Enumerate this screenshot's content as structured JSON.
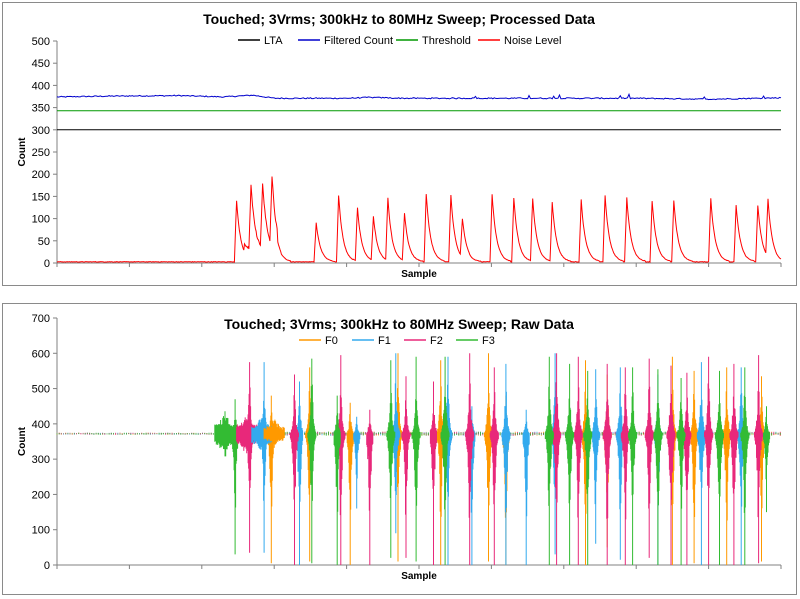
{
  "chart_data": [
    {
      "type": "line",
      "title": "Touched; 3Vrms; 300kHz to 80MHz Sweep; Processed Data",
      "xlabel": "Sample",
      "ylabel": "Count",
      "ylim": [
        0,
        500
      ],
      "yticks": [
        "0",
        "50",
        "100",
        "150",
        "200",
        "250",
        "300",
        "350",
        "400",
        "450",
        "500"
      ],
      "xlim": [
        0,
        1000
      ],
      "legend_position": "top",
      "series": [
        {
          "name": "LTA",
          "color": "#000000",
          "points": [
            [
              0,
              300
            ],
            [
              1000,
              300
            ]
          ]
        },
        {
          "name": "Filtered Count",
          "color": "#0000cc",
          "points": [
            [
              0,
              374
            ],
            [
              80,
              376
            ],
            [
              170,
              377
            ],
            [
              230,
              374
            ],
            [
              270,
              378
            ],
            [
              300,
              371
            ],
            [
              400,
              371
            ],
            [
              430,
              373
            ],
            [
              480,
              371
            ],
            [
              600,
              371
            ],
            [
              700,
              371
            ],
            [
              800,
              371
            ],
            [
              900,
              369
            ],
            [
              1000,
              372
            ]
          ]
        },
        {
          "name": "Threshold",
          "color": "#009900",
          "points": [
            [
              0,
              343
            ],
            [
              1000,
              343
            ]
          ]
        },
        {
          "name": "Noise Level",
          "color": "#ff0000",
          "baseline": 2,
          "peaks": [
            [
              248,
              138
            ],
            [
              268,
              147
            ],
            [
              284,
              146
            ],
            [
              297,
              155
            ],
            [
              358,
              88
            ],
            [
              389,
              150
            ],
            [
              415,
              122
            ],
            [
              437,
              100
            ],
            [
              457,
              140
            ],
            [
              480,
              107
            ],
            [
              510,
              153
            ],
            [
              544,
              150
            ],
            [
              560,
              87
            ],
            [
              601,
              152
            ],
            [
              631,
              144
            ],
            [
              657,
              143
            ],
            [
              684,
              135
            ],
            [
              724,
              140
            ],
            [
              757,
              150
            ],
            [
              787,
              145
            ],
            [
              822,
              137
            ],
            [
              852,
              138
            ],
            [
              903,
              143
            ],
            [
              938,
              128
            ],
            [
              968,
              127
            ],
            [
              982,
              130
            ]
          ]
        }
      ]
    },
    {
      "type": "line",
      "title": "Touched; 3Vrms; 300kHz to 80MHz Sweep; Raw Data",
      "xlabel": "Sample",
      "ylabel": "Count",
      "ylim": [
        0,
        700
      ],
      "yticks": [
        "0",
        "100",
        "200",
        "300",
        "400",
        "500",
        "600",
        "700"
      ],
      "xlim": [
        0,
        1000
      ],
      "legend_position": "top",
      "baseline": 370,
      "series": [
        {
          "name": "F0",
          "color": "#ff9900",
          "peaks": [
            [
              296,
              480,
              5
            ],
            [
              349,
              560,
              10
            ],
            [
              405,
              460,
              0
            ],
            [
              471,
              600,
              10
            ],
            [
              530,
              580,
              0
            ],
            [
              596,
              600,
              10
            ],
            [
              620,
              480,
              0
            ],
            [
              730,
              580,
              0
            ],
            [
              760,
              540,
              50
            ],
            [
              850,
              590,
              0
            ],
            [
              880,
              550,
              5
            ],
            [
              925,
              560,
              0
            ],
            [
              973,
              535,
              10
            ]
          ]
        },
        {
          "name": "F1",
          "color": "#33aaee",
          "peaks": [
            [
              286,
              575,
              35
            ],
            [
              335,
              520,
              0
            ],
            [
              414,
              420,
              160
            ],
            [
              468,
              600,
              90
            ],
            [
              540,
              590,
              0
            ],
            [
              573,
              450,
              0
            ],
            [
              620,
              570,
              0
            ],
            [
              648,
              440,
              0
            ],
            [
              688,
              600,
              30
            ],
            [
              744,
              555,
              60
            ],
            [
              778,
              560,
              15
            ],
            [
              830,
              540,
              0
            ],
            [
              890,
              575,
              0
            ],
            [
              945,
              560,
              0
            ]
          ]
        },
        {
          "name": "F2",
          "color": "#e8287a",
          "peaks": [
            [
              266,
              575,
              35
            ],
            [
              328,
              540,
              0
            ],
            [
              392,
              595,
              0
            ],
            [
              432,
              440,
              0
            ],
            [
              482,
              535,
              20
            ],
            [
              520,
              520,
              0
            ],
            [
              570,
              600,
              0
            ],
            [
              604,
              560,
              0
            ],
            [
              690,
              600,
              0
            ],
            [
              720,
              590,
              0
            ],
            [
              760,
              570,
              0
            ],
            [
              785,
              560,
              0
            ],
            [
              818,
              585,
              20
            ],
            [
              848,
              565,
              0
            ],
            [
              870,
              545,
              0
            ],
            [
              900,
              590,
              0
            ],
            [
              935,
              570,
              0
            ],
            [
              969,
              595,
              5
            ]
          ]
        },
        {
          "name": "F3",
          "color": "#33bb33",
          "peaks": [
            [
              246,
              470,
              30
            ],
            [
              352,
              585,
              5
            ],
            [
              387,
              480,
              0
            ],
            [
              461,
              580,
              20
            ],
            [
              496,
              590,
              10
            ],
            [
              536,
              590,
              0
            ],
            [
              680,
              590,
              0
            ],
            [
              708,
              570,
              0
            ],
            [
              733,
              550,
              0
            ],
            [
              795,
              560,
              0
            ],
            [
              830,
              555,
              0
            ],
            [
              862,
              530,
              0
            ],
            [
              915,
              550,
              0
            ],
            [
              950,
              560,
              0
            ],
            [
              980,
              450,
              150
            ]
          ]
        }
      ]
    }
  ]
}
